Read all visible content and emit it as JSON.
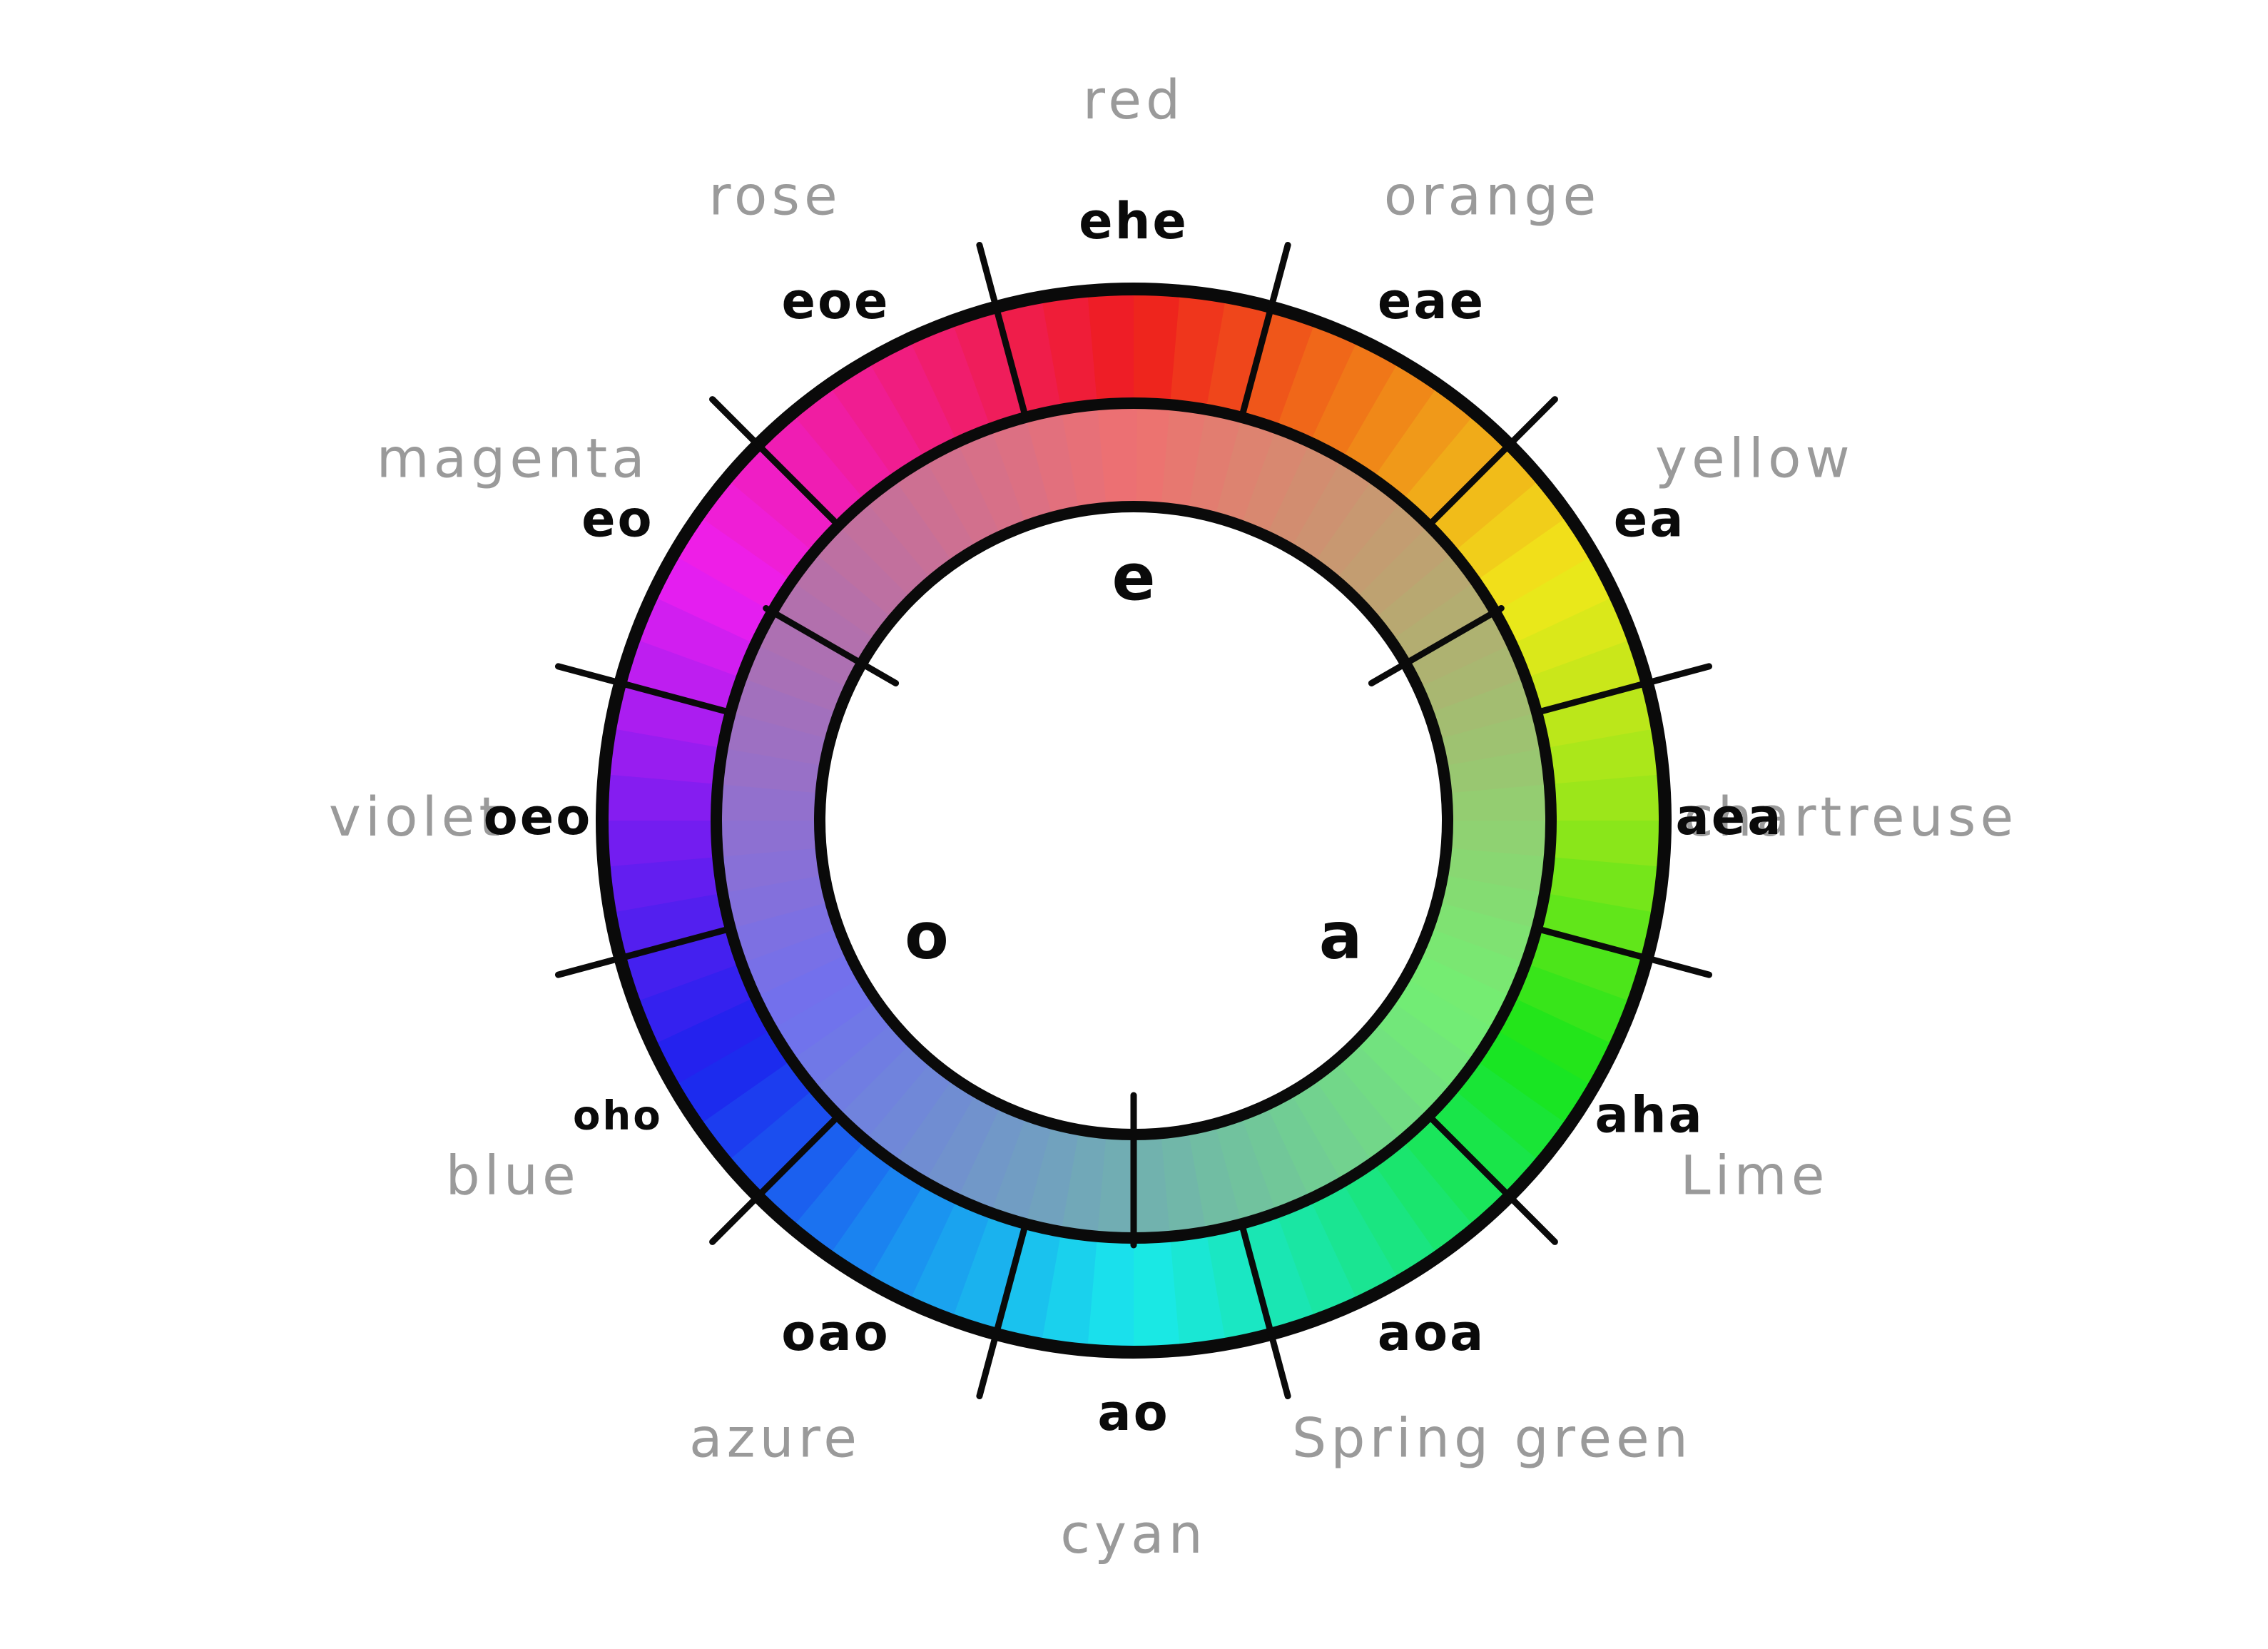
{
  "colors": {
    "ink": "#0a0a0a",
    "color_name_gray": "#9a9a9a",
    "background": "#ffffff"
  },
  "outer_ring": {
    "segments": [
      {
        "code": "ehe",
        "color_name": "red",
        "color": "#ee1d1d"
      },
      {
        "code": "eae",
        "color_name": "orange",
        "color": "#f07f18"
      },
      {
        "code": "ea",
        "color_name": "yellow",
        "color": "#f1e81a"
      },
      {
        "code": "aea",
        "color_name": "chartreuse",
        "color": "#94e61a"
      },
      {
        "code": "aha",
        "color_name": "Lime",
        "color": "#19e51a"
      },
      {
        "code": "aoa",
        "color_name": "Spring green",
        "color": "#1ae58a"
      },
      {
        "code": "ao",
        "color_name": "cyan",
        "color": "#1ae8ec"
      },
      {
        "code": "oao",
        "color_name": "azure",
        "color": "#1a8cf0"
      },
      {
        "code": "oho",
        "color_name": "blue",
        "color": "#1c22ee"
      },
      {
        "code": "oeo",
        "color_name": "violet",
        "color": "#7b1df0"
      },
      {
        "code": "eo",
        "color_name": "magenta",
        "color": "#ee1ef0"
      },
      {
        "code": "eoe",
        "color_name": "rose",
        "color": "#f01d88"
      }
    ]
  },
  "inner_ring": {
    "vowels": [
      {
        "label": "e",
        "color": "#ef7070"
      },
      {
        "label": "a",
        "color": "#72ef72"
      },
      {
        "label": "o",
        "color": "#7070ef"
      }
    ]
  }
}
